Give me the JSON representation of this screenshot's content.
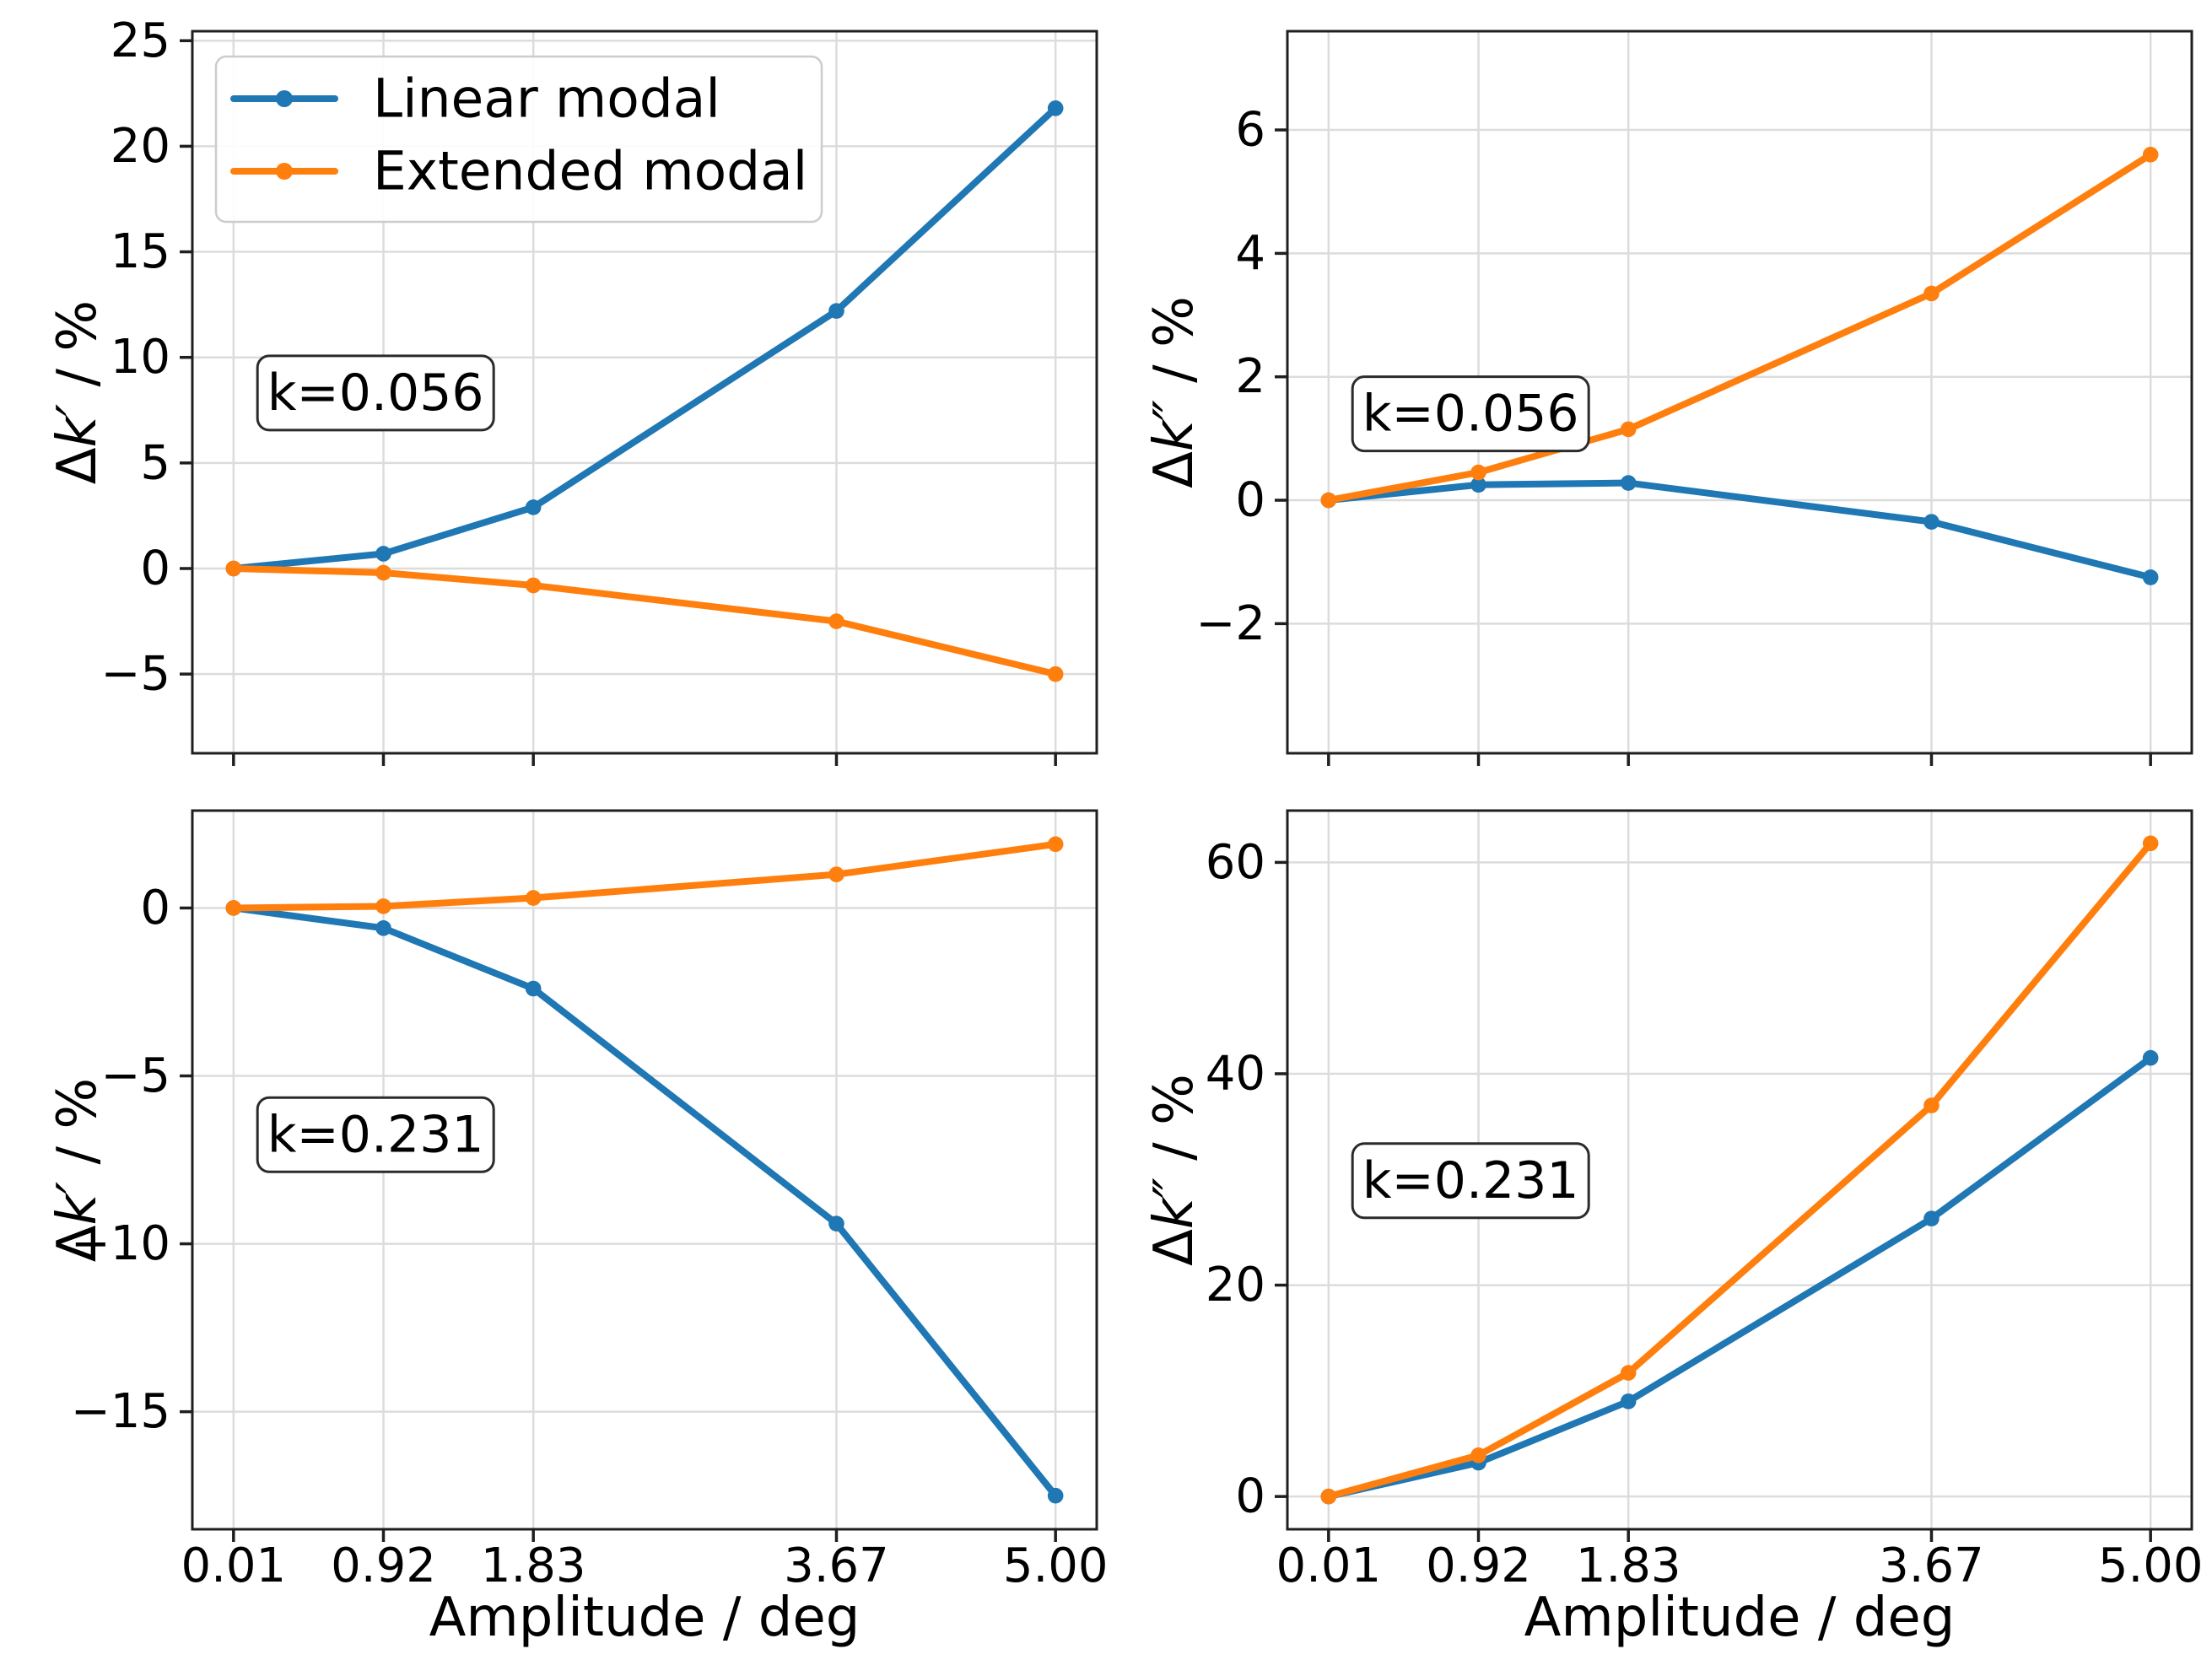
{
  "figure": {
    "background": "#ffffff",
    "axis_color": "#1f1f1f",
    "grid_color": "#dcdcdc",
    "text_color": "#000000",
    "series_colors": {
      "Linear modal": "#1f77b4",
      "Extended modal": "#ff7f0e"
    },
    "legend": {
      "position": "upper left",
      "items": [
        "Linear modal",
        "Extended modal"
      ]
    },
    "xlabel": "Amplitude / deg",
    "x_tick_labels": [
      "0.01",
      "0.92",
      "1.83",
      "3.67",
      "5.00"
    ]
  },
  "chart_data": [
    {
      "id": "top-left",
      "type": "line",
      "grid": true,
      "position": {
        "row": 0,
        "col": 0
      },
      "annotation": "k=0.056",
      "ylabel": {
        "prefix": "Δ",
        "italic": "k′",
        "suffix": " / %"
      },
      "x": [
        0.01,
        0.92,
        1.83,
        3.67,
        5.0
      ],
      "series": [
        {
          "name": "Linear modal",
          "values": [
            0.0,
            0.7,
            2.9,
            12.2,
            21.8
          ]
        },
        {
          "name": "Extended modal",
          "values": [
            0.0,
            -0.2,
            -0.8,
            -2.5,
            -5.0
          ]
        }
      ],
      "xlim": [
        -0.24,
        5.25
      ],
      "ylim": [
        -8.75,
        25.45
      ],
      "yticks": [
        -5,
        0,
        5,
        10,
        15,
        20,
        25
      ],
      "y_tick_labels": [
        "−5",
        "0",
        "5",
        "10",
        "15",
        "20",
        "25"
      ],
      "show_x_tick_labels": false,
      "show_xlabel": false,
      "legend": true,
      "annotation_pos": {
        "x_frac": 0.072,
        "y_center_frac": 0.501
      }
    },
    {
      "id": "top-right",
      "type": "line",
      "grid": true,
      "position": {
        "row": 0,
        "col": 1
      },
      "annotation": "k=0.056",
      "ylabel": {
        "prefix": "Δ",
        "italic": "k″",
        "suffix": " / %"
      },
      "x": [
        0.01,
        0.92,
        1.83,
        3.67,
        5.0
      ],
      "series": [
        {
          "name": "Linear modal",
          "values": [
            0.0,
            0.25,
            0.28,
            -0.35,
            -1.25
          ]
        },
        {
          "name": "Extended modal",
          "values": [
            0.0,
            0.45,
            1.15,
            3.35,
            5.6
          ]
        }
      ],
      "xlim": [
        -0.24,
        5.25
      ],
      "ylim": [
        -4.1,
        7.6
      ],
      "yticks": [
        -2,
        0,
        2,
        4,
        6
      ],
      "y_tick_labels": [
        "−2",
        "0",
        "2",
        "4",
        "6"
      ],
      "show_x_tick_labels": false,
      "show_xlabel": false,
      "legend": false,
      "annotation_pos": {
        "x_frac": 0.072,
        "y_center_frac": 0.53
      }
    },
    {
      "id": "bottom-left",
      "type": "line",
      "grid": true,
      "position": {
        "row": 1,
        "col": 0
      },
      "annotation": "k=0.231",
      "ylabel": {
        "prefix": "Δ",
        "italic": "k′",
        "suffix": " / %"
      },
      "x": [
        0.01,
        0.92,
        1.83,
        3.67,
        5.0
      ],
      "series": [
        {
          "name": "Linear modal",
          "values": [
            0.0,
            -0.6,
            -2.4,
            -9.4,
            -17.5
          ]
        },
        {
          "name": "Extended modal",
          "values": [
            0.0,
            0.05,
            0.3,
            1.0,
            1.9
          ]
        }
      ],
      "xlim": [
        -0.24,
        5.25
      ],
      "ylim": [
        -18.5,
        2.9
      ],
      "yticks": [
        -15,
        -10,
        -5,
        0
      ],
      "y_tick_labels": [
        "−15",
        "−10",
        "−5",
        "0"
      ],
      "show_x_tick_labels": true,
      "show_xlabel": true,
      "legend": false,
      "annotation_pos": {
        "x_frac": 0.072,
        "y_center_frac": 0.451
      }
    },
    {
      "id": "bottom-right",
      "type": "line",
      "grid": true,
      "position": {
        "row": 1,
        "col": 1
      },
      "annotation": "k=0.231",
      "ylabel": {
        "prefix": "Δ",
        "italic": "k″",
        "suffix": " / %"
      },
      "x": [
        0.01,
        0.92,
        1.83,
        3.67,
        5.0
      ],
      "series": [
        {
          "name": "Linear modal",
          "values": [
            0.0,
            3.2,
            9.0,
            26.3,
            41.5
          ]
        },
        {
          "name": "Extended modal",
          "values": [
            0.0,
            3.9,
            11.7,
            37.0,
            61.8
          ]
        }
      ],
      "xlim": [
        -0.24,
        5.25
      ],
      "ylim": [
        -3.1,
        64.9
      ],
      "yticks": [
        0,
        20,
        40,
        60
      ],
      "y_tick_labels": [
        "0",
        "20",
        "40",
        "60"
      ],
      "show_x_tick_labels": true,
      "show_xlabel": true,
      "legend": false,
      "annotation_pos": {
        "x_frac": 0.072,
        "y_center_frac": 0.515
      }
    }
  ]
}
